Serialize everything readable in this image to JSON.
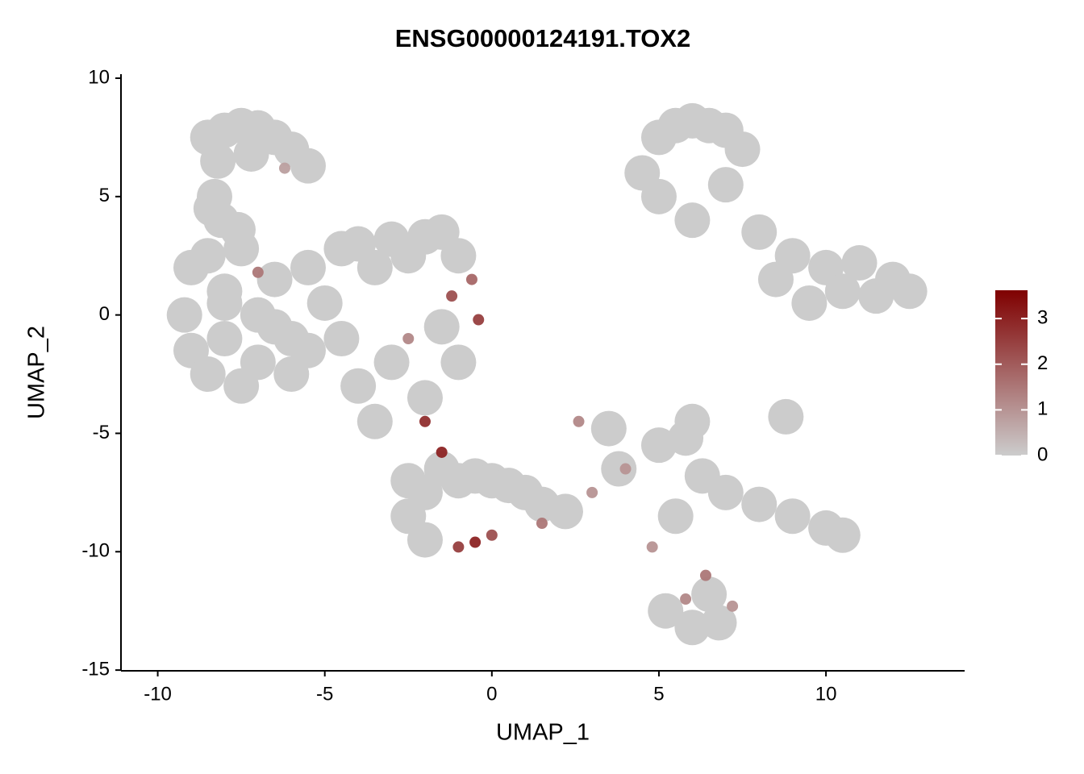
{
  "chart_data": {
    "type": "scatter",
    "title": "ENSG00000124191.TOX2",
    "x_label": "UMAP_1",
    "y_label": "UMAP_2",
    "xlim": [
      -11.1,
      14.15
    ],
    "ylim": [
      -15.03,
      10.17
    ],
    "xticks": [
      -10,
      -5,
      0,
      5,
      10
    ],
    "yticks": [
      -15,
      -10,
      -5,
      0,
      5,
      10
    ],
    "low_color": "#cccccc",
    "high_color": "#7f0000",
    "color_lim": [
      0,
      3.62
    ],
    "color_ticks": [
      0,
      1,
      2,
      3
    ],
    "x": [
      -8.5,
      -8,
      -7.5,
      -7,
      -6.5,
      -6,
      -5.5,
      -8.2,
      -7.2,
      -6.2,
      -8.3,
      -8.1,
      -8.4,
      -7.6,
      -9,
      -9.2,
      -8.5,
      -8,
      -7.5,
      -7,
      -6.5,
      -6,
      -5.5,
      -5,
      -9,
      -8.5,
      -8,
      -7.5,
      -7,
      -6.5,
      -6,
      -5.5,
      -8,
      -7,
      -4.5,
      -4,
      -3.5,
      -3,
      -2.5,
      -2,
      -1.5,
      -1,
      -0.6,
      -4.5,
      -4,
      -3.5,
      -3,
      -2.5,
      -2,
      -1.5,
      -1,
      -0.4,
      -2,
      -1.2,
      -2.5,
      -2,
      -1.5,
      -1,
      -0.5,
      0,
      0.5,
      1,
      1.5,
      -2.5,
      -2,
      -1.5,
      -1,
      -0.5,
      0,
      1.5,
      2.2,
      3,
      3.8,
      2.6,
      3.5,
      4.5,
      5,
      5.5,
      6,
      6.5,
      7,
      7.5,
      5,
      6,
      7,
      8,
      8.5,
      9,
      9.5,
      10,
      10.5,
      11,
      11.5,
      12,
      12.5,
      4,
      5,
      5.8,
      6.3,
      7,
      8,
      9,
      10,
      10.5,
      6,
      8.8,
      5.5,
      5.2,
      5.8,
      6.5,
      7.2,
      6,
      6.8,
      6.4,
      4.8
    ],
    "y": [
      7.5,
      7.8,
      8,
      7.9,
      7.5,
      7,
      6.3,
      6.5,
      6.8,
      6.2,
      5,
      4,
      4.5,
      3.6,
      2,
      0,
      2.5,
      1,
      2.8,
      0,
      1.5,
      -1,
      2,
      0.5,
      -1.5,
      -2.5,
      -1,
      -3,
      -2,
      -0.5,
      -2.5,
      -1.5,
      0.5,
      1.8,
      2.8,
      3,
      2,
      3.2,
      2.5,
      3.3,
      3.5,
      2.5,
      1.5,
      -1,
      -3,
      -4.5,
      -2,
      -1,
      -3.5,
      -0.5,
      -2,
      -0.2,
      -4.5,
      0.8,
      -7,
      -7.5,
      -6.5,
      -7,
      -6.8,
      -7,
      -7.2,
      -7.5,
      -8,
      -8.5,
      -9.5,
      -5.8,
      -9.8,
      -9.6,
      -9.3,
      -8.8,
      -8.3,
      -7.5,
      -6.5,
      -4.5,
      -4.8,
      6,
      7.5,
      8,
      8.2,
      8,
      7.8,
      7,
      5,
      4,
      5.5,
      3.5,
      1.5,
      2.5,
      0.5,
      2,
      1,
      2.2,
      0.8,
      1.5,
      1,
      -6.5,
      -5.5,
      -5.2,
      -6.8,
      -7.5,
      -8,
      -8.5,
      -9,
      -9.3,
      -4.5,
      -4.3,
      -8.5,
      -12.5,
      -12,
      -11.8,
      -12.3,
      -13.2,
      -13,
      -11,
      -9.8
    ],
    "expression": [
      0,
      0,
      0,
      0,
      0,
      0,
      0,
      0,
      0,
      0.8,
      0,
      0,
      0,
      0,
      0,
      0,
      0,
      0,
      0,
      0,
      0,
      0,
      0,
      0,
      0,
      0,
      0,
      0,
      0,
      0,
      0,
      0,
      0,
      1.5,
      0,
      0,
      0,
      0,
      0,
      0,
      0,
      0,
      1.8,
      0,
      0,
      0,
      0,
      1.2,
      0,
      0,
      0,
      2.5,
      2.8,
      2.2,
      0,
      0,
      0,
      0,
      0,
      0,
      0,
      0,
      0,
      0,
      0,
      3,
      2.5,
      3,
      2.2,
      1.5,
      0,
      1,
      0,
      1.2,
      0,
      0,
      0,
      0,
      0,
      0,
      0,
      0,
      0,
      0,
      0,
      0,
      0,
      0,
      0,
      0,
      0,
      0,
      0,
      0,
      0,
      1,
      0,
      0,
      0,
      0,
      0,
      0,
      0,
      0,
      0,
      0,
      0,
      0,
      1.2,
      0,
      1,
      0,
      0,
      1.5,
      1
    ]
  }
}
